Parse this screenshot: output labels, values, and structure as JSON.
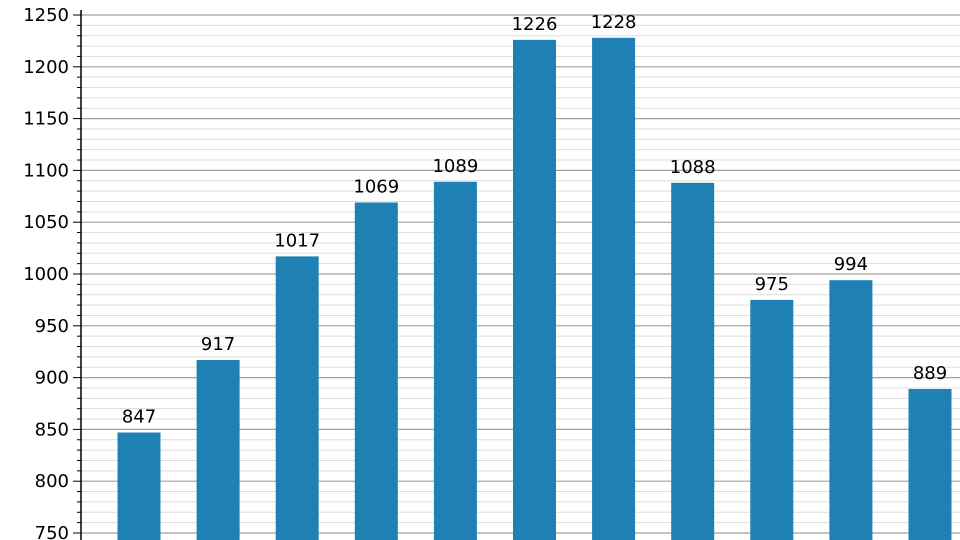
{
  "chart_data": {
    "type": "bar",
    "title": "",
    "xlabel": "",
    "ylabel": "",
    "values": [
      847,
      917,
      1017,
      1069,
      1089,
      1226,
      1228,
      1088,
      975,
      994,
      889
    ],
    "ylim": [
      750,
      1250
    ],
    "yticks": [
      "750",
      "800",
      "850",
      "900",
      "950",
      "1000",
      "1050",
      "1100",
      "1150",
      "1200",
      "1250"
    ],
    "grid": true,
    "bar_color": "#1f80b4",
    "major_grid_color": "#a0a0a0",
    "minor_grid_color": "#dddddd"
  }
}
